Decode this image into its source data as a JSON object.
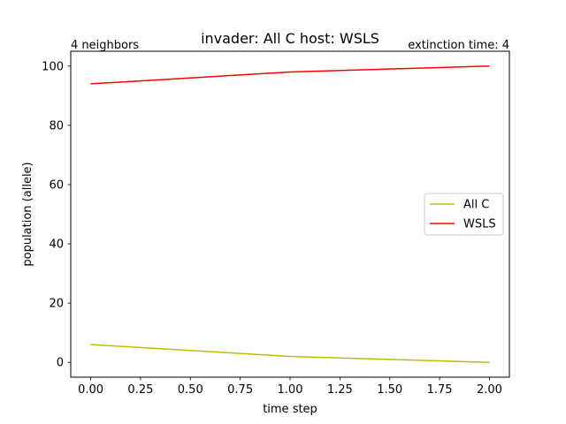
{
  "chart_data": {
    "type": "line",
    "title": "invader: All C host: WSLS",
    "left_annotation": "4 neighbors",
    "right_annotation": "extinction time: 4",
    "xlabel": "time step",
    "ylabel": "population (allele)",
    "x": [
      0,
      1,
      2
    ],
    "xlim": [
      -0.1,
      2.1
    ],
    "ylim": [
      -5,
      105
    ],
    "x_ticks": [
      "0.00",
      "0.25",
      "0.50",
      "0.75",
      "1.00",
      "1.25",
      "1.50",
      "1.75",
      "2.00"
    ],
    "x_tick_values": [
      0,
      0.25,
      0.5,
      0.75,
      1,
      1.25,
      1.5,
      1.75,
      2
    ],
    "y_ticks": [
      "0",
      "20",
      "40",
      "60",
      "80",
      "100"
    ],
    "y_tick_values": [
      0,
      20,
      40,
      60,
      80,
      100
    ],
    "grid": false,
    "legend_position": "center-right",
    "series": [
      {
        "name": "All C",
        "color": "#bfbf00",
        "values": [
          6,
          2,
          0
        ]
      },
      {
        "name": "WSLS",
        "color": "#ff0000",
        "values": [
          94,
          98,
          100
        ]
      }
    ]
  }
}
